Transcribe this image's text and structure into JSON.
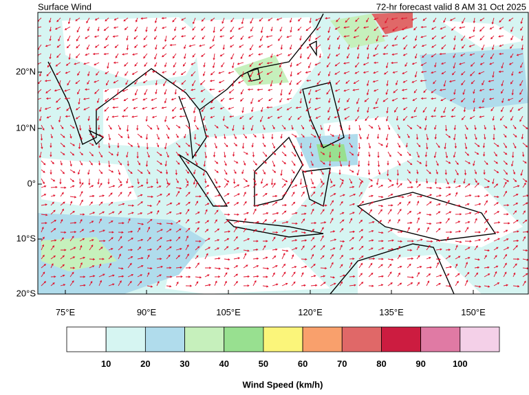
{
  "header": {
    "title": "Surface Wind",
    "subtitle": "72-hr forecast valid 8 AM 31 Oct 2025"
  },
  "map": {
    "lat_labels": [
      "20°N",
      "10°N",
      "0°",
      "10°S",
      "20°S"
    ],
    "lon_labels": [
      "75°E",
      "90°E",
      "105°E",
      "120°E",
      "135°E",
      "150°E"
    ]
  },
  "legend": {
    "title": "Wind Speed (km/h)",
    "colors": [
      "#ffffff",
      "#d6f5f2",
      "#b0dcec",
      "#c6f0bc",
      "#98e090",
      "#fbf57a",
      "#f9a06c",
      "#e06868",
      "#cc1c40",
      "#e07aa4",
      "#f4d0e8"
    ],
    "ticks": [
      "10",
      "20",
      "30",
      "40",
      "50",
      "60",
      "70",
      "80",
      "90",
      "100"
    ]
  }
}
